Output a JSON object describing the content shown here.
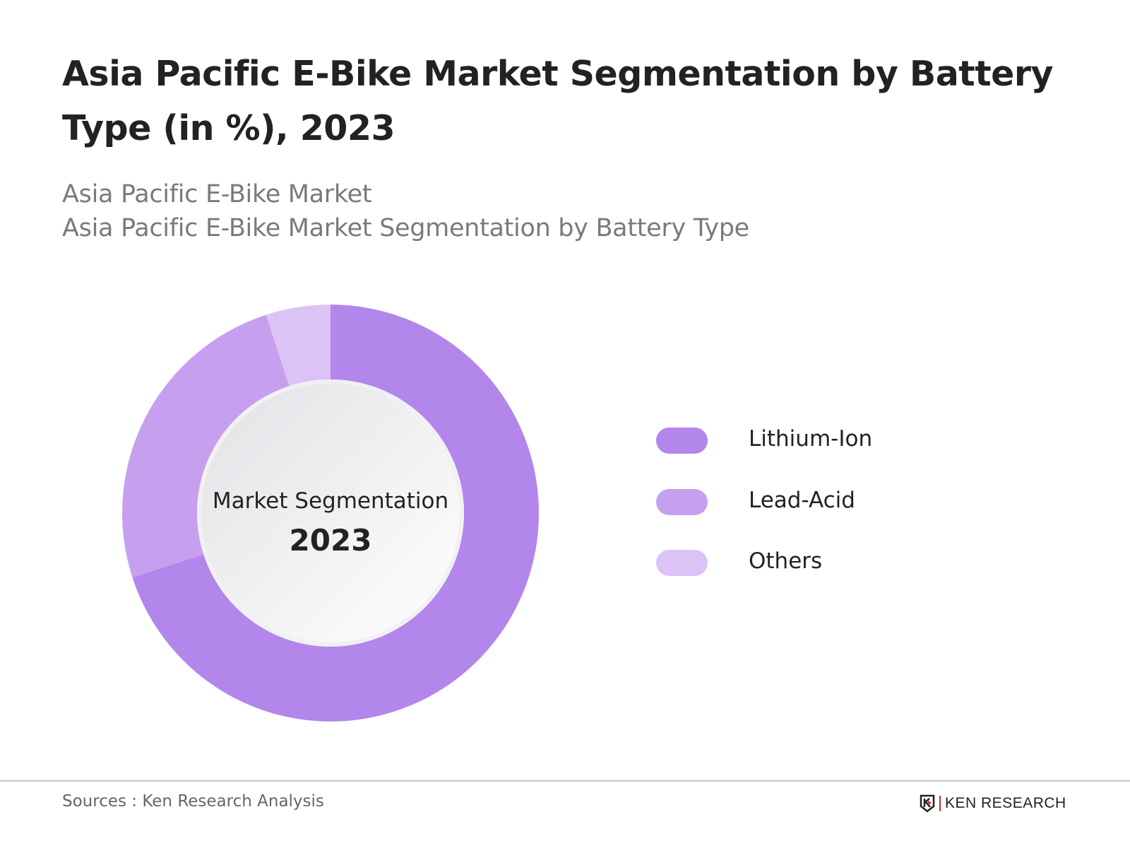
{
  "title": "Asia Pacific E-Bike Market Segmentation by Battery Type (in %), 2023",
  "subtitle_1": "Asia Pacific E-Bike Market",
  "subtitle_2": "Asia Pacific E-Bike Market Segmentation by Battery Type",
  "chart_data": {
    "type": "pie",
    "variant": "donut",
    "center_label": "Market Segmentation",
    "center_value": "2023",
    "categories": [
      "Lithium-Ion",
      "Lead-Acid",
      "Others"
    ],
    "values": [
      70,
      25,
      5
    ],
    "colors": [
      "#b386eb",
      "#c6a0ee",
      "#dcc3f6"
    ],
    "legend_position": "right"
  },
  "footer": {
    "source": "Sources : Ken Research Analysis",
    "logo_text": "KEN RESEARCH"
  }
}
